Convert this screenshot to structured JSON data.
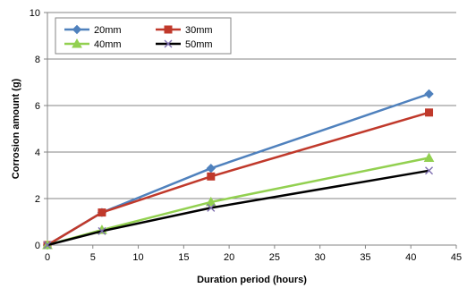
{
  "chart_data": {
    "type": "line",
    "title": "",
    "xlabel": "Duration period (hours)",
    "ylabel": "Corrosion amount (g)",
    "xlim": [
      0,
      45
    ],
    "ylim": [
      0,
      10
    ],
    "xticks": [
      0,
      5,
      10,
      15,
      20,
      25,
      30,
      35,
      40,
      45
    ],
    "yticks": [
      0,
      2,
      4,
      6,
      8,
      10
    ],
    "grid": "horizontal",
    "legend_position": "top-left",
    "series": [
      {
        "name": "20mm",
        "color": "#4f81bd",
        "marker": "diamond",
        "x": [
          0,
          6,
          18,
          42
        ],
        "y": [
          0,
          1.4,
          3.3,
          6.5
        ]
      },
      {
        "name": "30mm",
        "color": "#c0392b",
        "marker": "square",
        "x": [
          0,
          6,
          18,
          42
        ],
        "y": [
          0,
          1.4,
          2.95,
          5.7
        ]
      },
      {
        "name": "40mm",
        "color": "#92d050",
        "marker": "triangle",
        "x": [
          0,
          6,
          18,
          42
        ],
        "y": [
          0,
          0.65,
          1.85,
          3.75
        ]
      },
      {
        "name": "50mm",
        "color": "#000000",
        "marker": "x",
        "x": [
          0,
          6,
          18,
          42
        ],
        "y": [
          0,
          0.6,
          1.6,
          3.2
        ]
      }
    ]
  }
}
